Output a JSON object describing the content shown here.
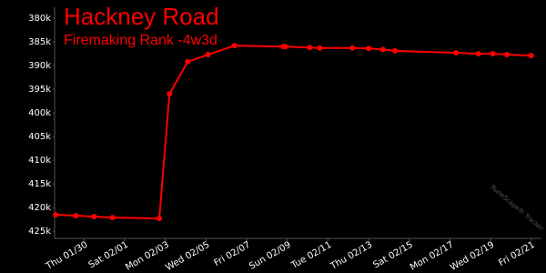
{
  "chart_data": {
    "type": "line",
    "title": "Hackney Road",
    "subtitle": "Firemaking Rank -4w3d",
    "watermark": "RuneScape® Tracker",
    "x": [
      -0.4,
      0.6,
      1.5,
      2.4,
      4.7,
      5.2,
      6.1,
      7.1,
      8.4,
      10.8,
      10.9,
      12.1,
      12.6,
      14.2,
      15.0,
      15.7,
      16.3,
      19.3,
      20.4,
      21.1,
      21.8,
      23.0
    ],
    "series": [
      {
        "name": "Firemaking Rank",
        "color": "#ff0000",
        "values": [
          421500,
          421700,
          421900,
          422100,
          422300,
          396000,
          389200,
          387700,
          385800,
          386000,
          386000,
          386200,
          386300,
          386300,
          386400,
          386600,
          386900,
          387300,
          387500,
          387500,
          387700,
          387900
        ]
      }
    ],
    "xlim": [
      -0.45,
      23.5
    ],
    "xticks": [
      {
        "value": 1,
        "label": "Thu 01/30"
      },
      {
        "value": 3,
        "label": "Sat 02/01"
      },
      {
        "value": 5,
        "label": "Mon 02/03"
      },
      {
        "value": 7,
        "label": "Wed 02/05"
      },
      {
        "value": 9,
        "label": "Fri 02/07"
      },
      {
        "value": 11,
        "label": "Sun 02/09"
      },
      {
        "value": 13,
        "label": "Tue 02/11"
      },
      {
        "value": 15,
        "label": "Thu 02/13"
      },
      {
        "value": 17,
        "label": "Sat 02/15"
      },
      {
        "value": 19,
        "label": "Mon 02/17"
      },
      {
        "value": 21,
        "label": "Wed 02/19"
      },
      {
        "value": 23,
        "label": "Fri 02/21"
      }
    ],
    "ylim": [
      377700,
      426500
    ],
    "y_inverted": true,
    "yticks": [
      {
        "value": 380000,
        "label": "380k"
      },
      {
        "value": 385000,
        "label": "385k"
      },
      {
        "value": 390000,
        "label": "390k"
      },
      {
        "value": 395000,
        "label": "395k"
      },
      {
        "value": 400000,
        "label": "400k"
      },
      {
        "value": 405000,
        "label": "405k"
      },
      {
        "value": 410000,
        "label": "410k"
      },
      {
        "value": 415000,
        "label": "415k"
      },
      {
        "value": 420000,
        "label": "420k"
      },
      {
        "value": 425000,
        "label": "425k"
      }
    ],
    "grid": false
  }
}
